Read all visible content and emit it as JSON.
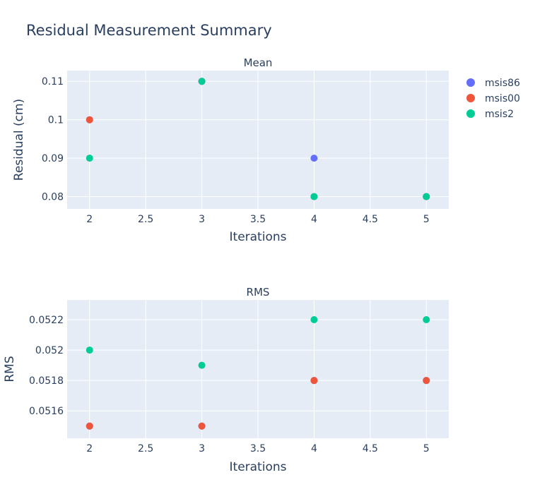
{
  "chart_data": {
    "type": "scatter",
    "title": "Residual Measurement Summary",
    "colors": {
      "msis86": "#636efa",
      "msis00": "#ef553b",
      "msis2": "#00cc96"
    },
    "legend": {
      "placement": "top-right",
      "entries": [
        "msis86",
        "msis00",
        "msis2"
      ]
    },
    "subplots": [
      {
        "subtitle": "Mean",
        "xlabel": "Iterations",
        "ylabel": "Residual (cm)",
        "xlim": [
          1.8,
          5.2
        ],
        "ylim": [
          0.0768,
          0.1128
        ],
        "xticks": [
          "2",
          "2.5",
          "3",
          "3.5",
          "4",
          "4.5",
          "5"
        ],
        "yticks": [
          "0.08",
          "0.09",
          "0.1",
          "0.11"
        ],
        "series": [
          {
            "name": "msis86",
            "x": [
              2,
              3,
              4,
              5
            ],
            "y": [
              0.1,
              0.11,
              0.09,
              0.08
            ]
          },
          {
            "name": "msis00",
            "x": [
              2,
              3,
              4,
              5
            ],
            "y": [
              0.1,
              0.11,
              0.08,
              0.08
            ]
          },
          {
            "name": "msis2",
            "x": [
              2,
              3,
              4,
              5
            ],
            "y": [
              0.09,
              0.11,
              0.08,
              0.08
            ]
          }
        ]
      },
      {
        "subtitle": "RMS",
        "xlabel": "Iterations",
        "ylabel": "RMS",
        "xlim": [
          1.8,
          5.2
        ],
        "ylim": [
          0.05142,
          0.05233
        ],
        "xticks": [
          "2",
          "2.5",
          "3",
          "3.5",
          "4",
          "4.5",
          "5"
        ],
        "yticks": [
          "0.0516",
          "0.0518",
          "0.052",
          "0.0522"
        ],
        "series": [
          {
            "name": "msis86",
            "x": [
              2,
              3,
              4,
              5
            ],
            "y": [
              0.0515,
              0.0515,
              0.0518,
              0.0518
            ]
          },
          {
            "name": "msis00",
            "x": [
              2,
              3,
              4,
              5
            ],
            "y": [
              0.0515,
              0.0515,
              0.0518,
              0.0518
            ]
          },
          {
            "name": "msis2",
            "x": [
              2,
              3,
              4,
              5
            ],
            "y": [
              0.052,
              0.0519,
              0.0522,
              0.0522
            ]
          }
        ]
      }
    ]
  }
}
